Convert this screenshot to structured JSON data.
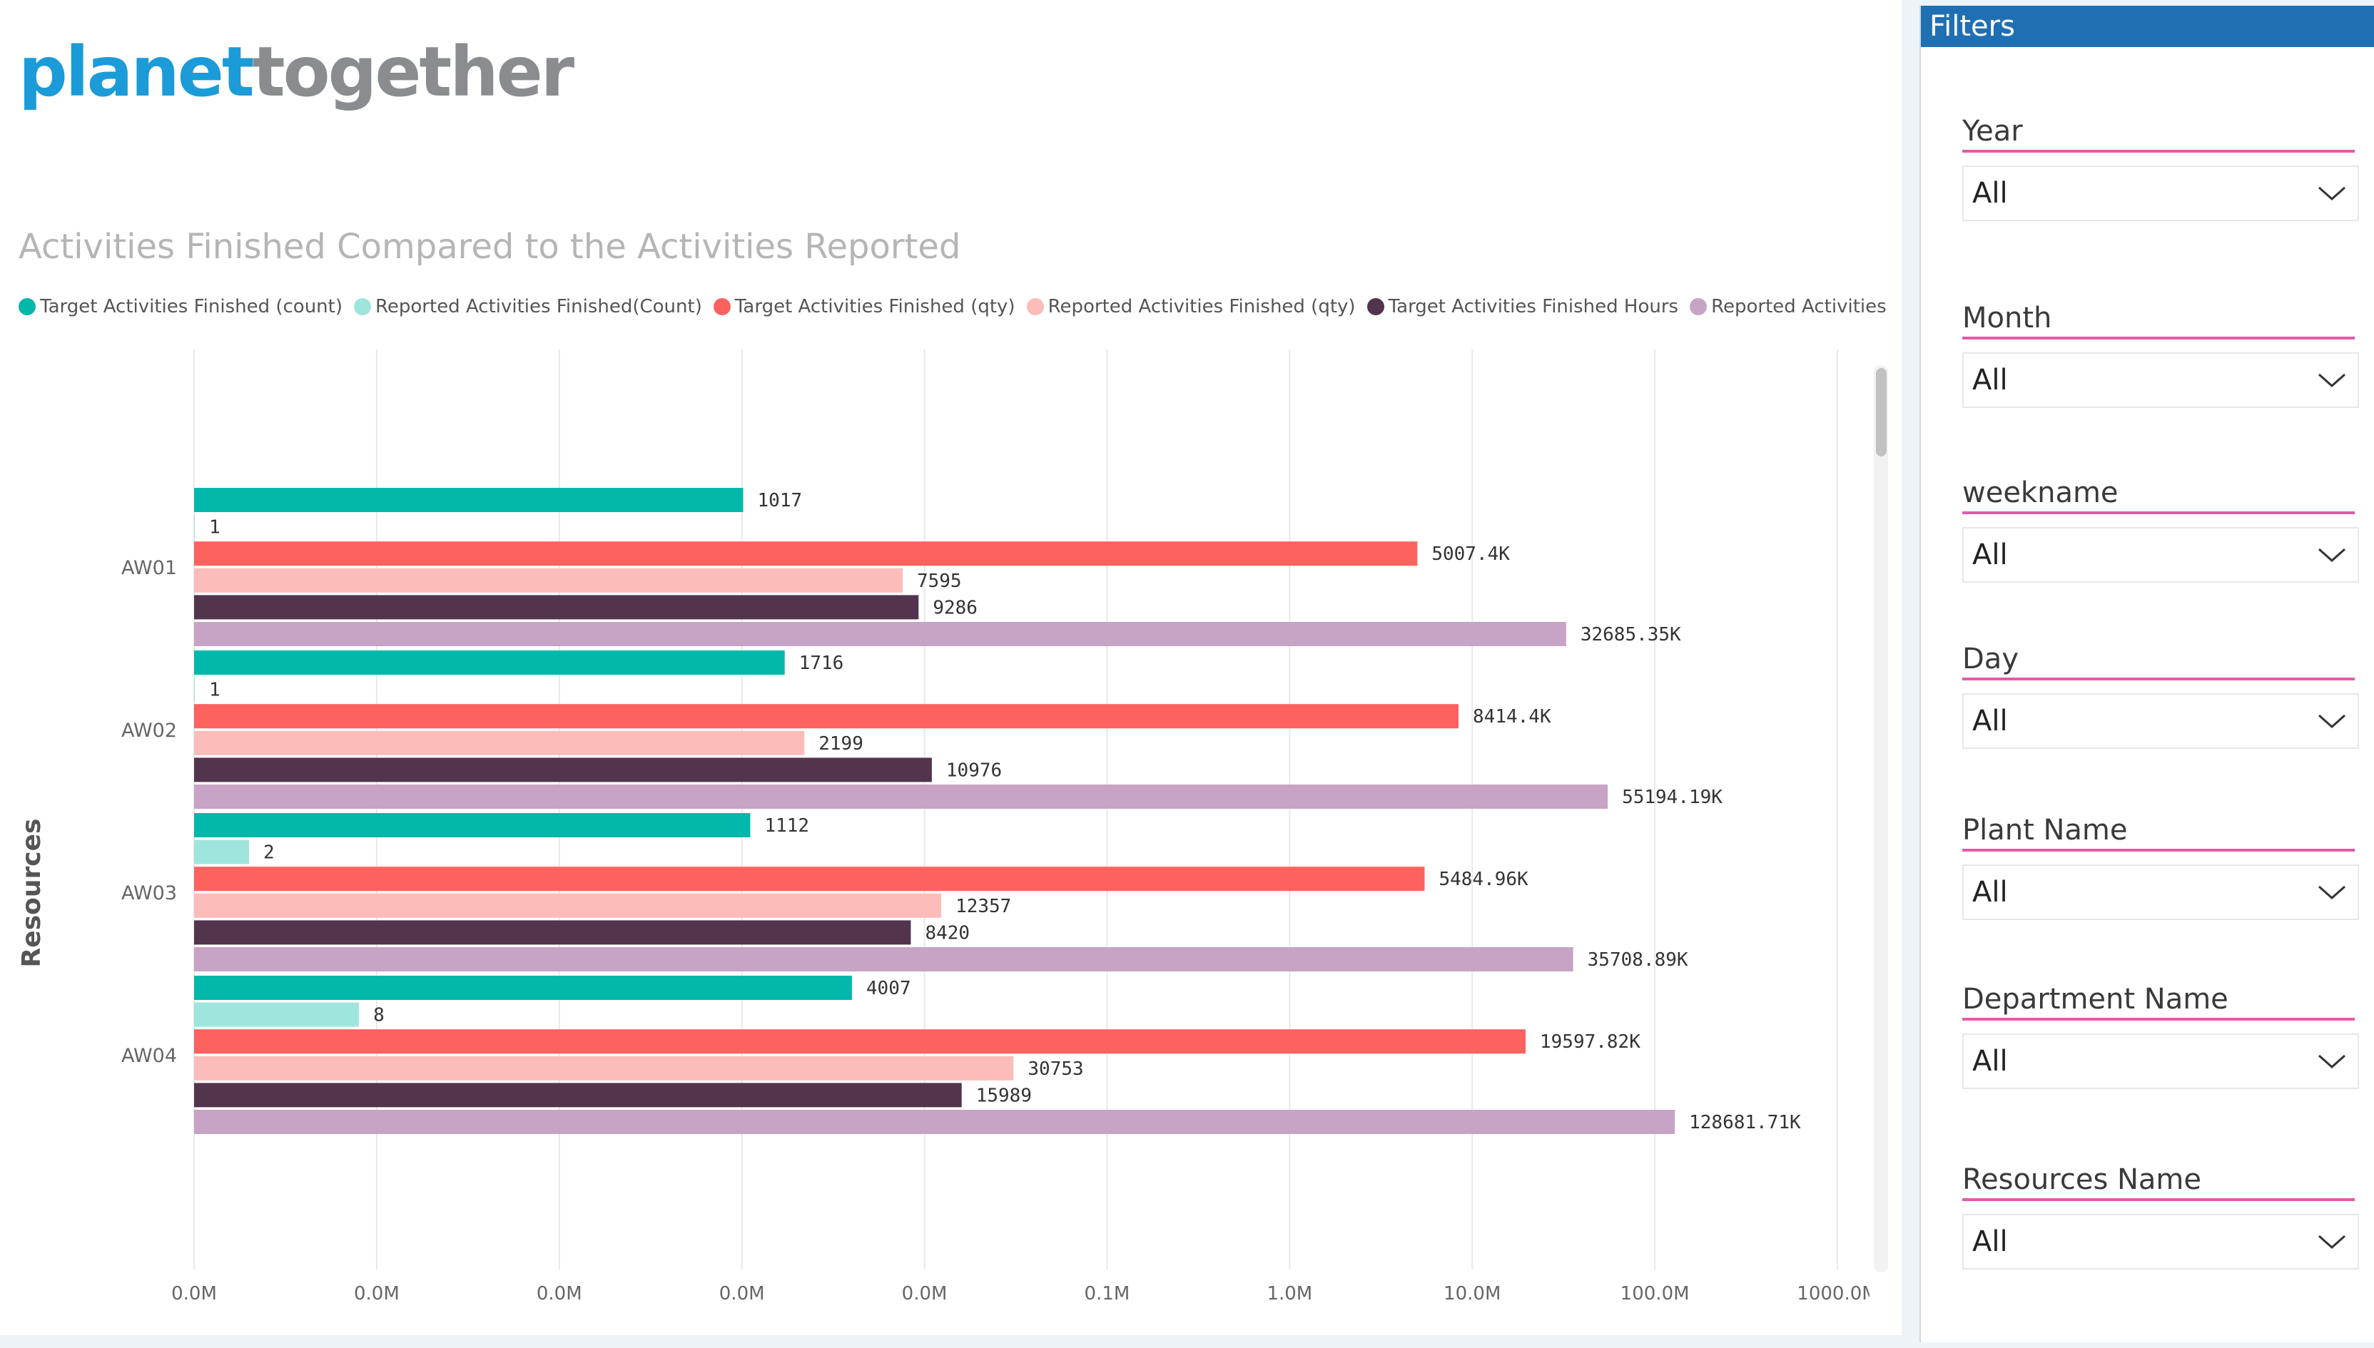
{
  "brand": {
    "part1": "planet",
    "part2": "together"
  },
  "chart_title": "Activities Finished Compared to the Activities Reported",
  "filters": {
    "title": "Filters",
    "slicers": [
      {
        "label": "Year",
        "value": "All"
      },
      {
        "label": "Month",
        "value": "All"
      },
      {
        "label": "weekname",
        "value": "All"
      },
      {
        "label": "Day",
        "value": "All"
      },
      {
        "label": "Plant Name",
        "value": "All"
      },
      {
        "label": "Department Name",
        "value": "All"
      },
      {
        "label": "Resources Name",
        "value": "All"
      }
    ]
  },
  "chart_data": {
    "type": "bar",
    "orientation": "horizontal",
    "title": "Activities Finished Compared to the Activities Reported",
    "ylabel": "Resources",
    "xlabel": "",
    "x_scale": "log",
    "categories": [
      "AW01",
      "AW02",
      "AW03",
      "AW04"
    ],
    "x_tick_labels": [
      "0.0M",
      "0.0M",
      "0.0M",
      "0.0M",
      "0.0M",
      "0.1M",
      "1.0M",
      "10.0M",
      "100.0M",
      "1000.0M"
    ],
    "x_tick_values": [
      1,
      10,
      100,
      1000,
      10000,
      100000,
      1000000,
      10000000,
      100000000,
      1000000000
    ],
    "series": [
      {
        "name": "Target Activities Finished (count)",
        "color": "#01b8aa",
        "values": [
          1017,
          1716,
          1112,
          4007
        ],
        "labels": [
          "1017",
          "1716",
          "1112",
          "4007"
        ]
      },
      {
        "name": "Reported Activities Finished(Count)",
        "color": "#9ee5dd",
        "values": [
          1,
          1,
          2,
          8
        ],
        "labels": [
          "1",
          "1",
          "2",
          "8"
        ]
      },
      {
        "name": "Target Activities Finished (qty)",
        "color": "#fd625e",
        "values": [
          5007400,
          8414400,
          5484960,
          19597820
        ],
        "labels": [
          "5007.4K",
          "8414.4K",
          "5484.96K",
          "19597.82K"
        ]
      },
      {
        "name": "Reported Activities Finished (qty)",
        "color": "#fcbcb9",
        "values": [
          7595,
          2199,
          12357,
          30753
        ],
        "labels": [
          "7595",
          "2199",
          "12357",
          "30753"
        ]
      },
      {
        "name": "Target Activities Finished Hours",
        "color": "#53344d",
        "values": [
          9286,
          10976,
          8420,
          15989
        ],
        "labels": [
          "9286",
          "10976",
          "8420",
          "15989"
        ]
      },
      {
        "name": "Reported Activities Finished H...",
        "color": "#c7a3c5",
        "values": [
          32685350,
          55194190,
          35708890,
          128681710
        ],
        "labels": [
          "32685.35K",
          "55194.19K",
          "35708.89K",
          "128681.71K"
        ]
      }
    ]
  }
}
